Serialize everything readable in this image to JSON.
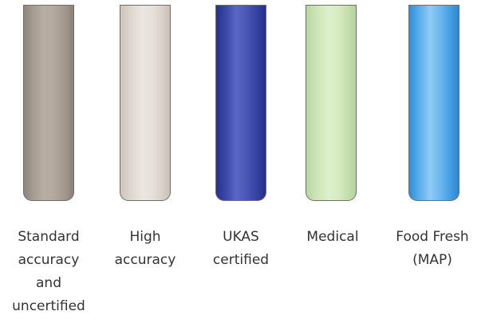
{
  "tubes": [
    {
      "id": "standard",
      "label": "Standard\naccuracy\nand\nuncertified",
      "color": "#a89e94"
    },
    {
      "id": "high",
      "label": "High\naccuracy",
      "color": "#e2dcd4"
    },
    {
      "id": "ukas",
      "label": "UKAS\ncertified",
      "color": "#3e4aa8"
    },
    {
      "id": "medical",
      "label": "Medical",
      "color": "#d2e8bd"
    },
    {
      "id": "food",
      "label": "Food Fresh\n(MAP)",
      "color": "#5fb0ec"
    }
  ]
}
